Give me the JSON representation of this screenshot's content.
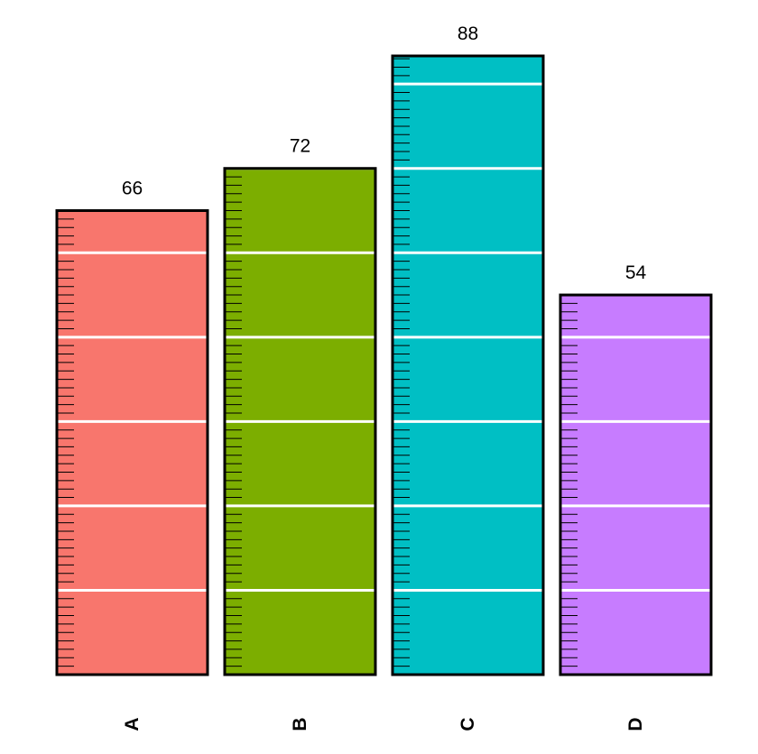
{
  "chart_data": {
    "type": "bar",
    "title": "",
    "xlabel": "",
    "ylabel": "",
    "categories": [
      "A",
      "B",
      "C",
      "D"
    ],
    "values": [
      66,
      72,
      88,
      54
    ],
    "value_labels": [
      "66",
      "72",
      "88",
      "54"
    ],
    "colors": [
      "#F8766D",
      "#7CAE00",
      "#00BFC4",
      "#C77CFF"
    ],
    "ylim": [
      0,
      88
    ],
    "gridline_values": [
      12,
      24,
      36,
      48,
      60,
      72,
      84
    ],
    "gridline_color": "#ffffff",
    "bar_border_color": "#000000",
    "minor_tick_step": 1.2,
    "grid": true,
    "legend": "none",
    "category_label_orientation": "vertical"
  }
}
